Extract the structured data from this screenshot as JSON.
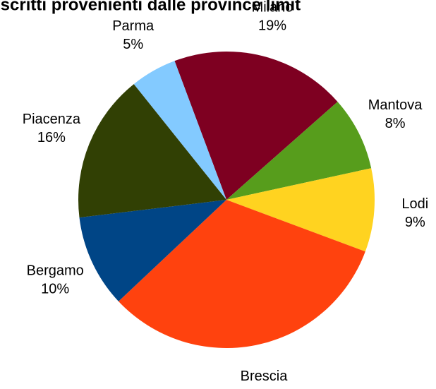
{
  "chart_data": {
    "type": "pie",
    "title": "Iscritti provenienti dalle province limit",
    "categories": [
      "Milano",
      "Mantova",
      "Lodi",
      "Brescia",
      "Bergamo",
      "Piacenza",
      "Parma"
    ],
    "values": [
      19,
      8,
      9,
      32,
      10,
      16,
      5
    ],
    "value_labels": [
      "19%",
      "8%",
      "9%",
      "32%",
      "10%",
      "16%",
      "5%"
    ],
    "colors": [
      "#7e0021",
      "#579d1c",
      "#ffd320",
      "#ff420e",
      "#004586",
      "#314004",
      "#83caff"
    ]
  }
}
